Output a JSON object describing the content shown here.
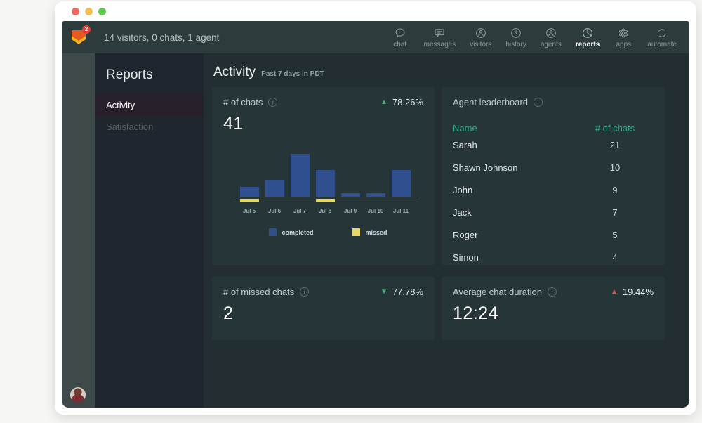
{
  "topbar": {
    "badge": "2",
    "status_text": "14 visitors, 0 chats, 1 agent",
    "nav": [
      {
        "label": "chat",
        "icon": "chat-icon",
        "active": false
      },
      {
        "label": "messages",
        "icon": "messages-icon",
        "active": false
      },
      {
        "label": "visitors",
        "icon": "visitors-icon",
        "active": false
      },
      {
        "label": "history",
        "icon": "history-icon",
        "active": false
      },
      {
        "label": "agents",
        "icon": "agents-icon",
        "active": false
      },
      {
        "label": "reports",
        "icon": "reports-icon",
        "active": true
      },
      {
        "label": "apps",
        "icon": "apps-icon",
        "active": false
      },
      {
        "label": "automate",
        "icon": "automate-icon",
        "active": false
      }
    ]
  },
  "sidebar": {
    "title": "Reports",
    "items": [
      {
        "label": "Activity",
        "active": true
      },
      {
        "label": "Satisfaction",
        "active": false
      }
    ]
  },
  "main": {
    "title": "Activity",
    "subtitle": "Past 7 days in PDT"
  },
  "cards": {
    "chats": {
      "title": "# of chats",
      "info_glyph": "i",
      "delta": "78.26%",
      "delta_direction": "up",
      "delta_color": "#3cb878",
      "value": "41"
    },
    "leaderboard": {
      "title": "Agent leaderboard",
      "info_glyph": "i",
      "columns": [
        "Name",
        "# of chats"
      ],
      "header_color": "#2fae88",
      "rows": [
        {
          "name": "Sarah",
          "chats": "21"
        },
        {
          "name": "Shawn Johnson",
          "chats": "10"
        },
        {
          "name": "John",
          "chats": "9"
        },
        {
          "name": "Jack",
          "chats": "7"
        },
        {
          "name": "Roger",
          "chats": "5"
        },
        {
          "name": "Simon",
          "chats": "4"
        }
      ]
    },
    "missed": {
      "title": "# of missed chats",
      "info_glyph": "i",
      "delta": "77.78%",
      "delta_direction": "down",
      "delta_color": "#3cb878",
      "value": "2"
    },
    "duration": {
      "title": "Average chat duration",
      "info_glyph": "i",
      "delta": "19.44%",
      "delta_direction": "up",
      "delta_color": "#e2574c",
      "value": "12:24"
    }
  },
  "chart_data": {
    "type": "bar",
    "stacked": true,
    "title": "# of chats",
    "categories": [
      "Jul 5",
      "Jul 6",
      "Jul 7",
      "Jul 8",
      "Jul 9",
      "Jul 10",
      "Jul 11"
    ],
    "series": [
      {
        "name": "completed",
        "color": "#2f4f8e",
        "values": [
          3,
          5,
          13,
          8,
          1,
          1,
          8
        ]
      },
      {
        "name": "missed",
        "color": "#e8d66b",
        "values": [
          1,
          0,
          0,
          1,
          0,
          0,
          0
        ]
      }
    ],
    "ylim": [
      0,
      13
    ],
    "grid": false,
    "legend_position": "bottom",
    "missed_rendered_below_baseline": true
  },
  "colors": {
    "accent_teal": "#2fae88",
    "delta_green": "#3cb878",
    "delta_red": "#e2574c",
    "bar_completed": "#2f4f8e",
    "bar_missed": "#e8d66b"
  }
}
